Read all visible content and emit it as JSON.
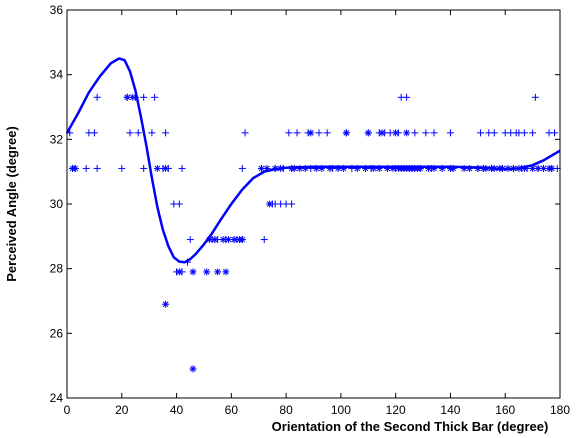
{
  "chart_data": {
    "type": "scatter",
    "title": "",
    "xlabel": "Orientation of the Second Thick Bar (degree)",
    "ylabel": "Perceived Angle (degree)",
    "xlim": [
      0,
      180
    ],
    "ylim": [
      24,
      36
    ],
    "xticks": [
      0,
      20,
      40,
      60,
      80,
      100,
      120,
      140,
      160,
      180
    ],
    "yticks": [
      24,
      26,
      28,
      30,
      32,
      34,
      36
    ],
    "grid": false,
    "legend": "none",
    "colors": {
      "series": "#0000ff",
      "axes": "#000000",
      "background": "#ffffff"
    },
    "series": [
      {
        "kind": "points",
        "marker": "plus",
        "points": [
          [
            1,
            32.2
          ],
          [
            2,
            31.1
          ],
          [
            3,
            31.1
          ],
          [
            7,
            31.1
          ],
          [
            8,
            32.2
          ],
          [
            10,
            32.2
          ],
          [
            11,
            31.1
          ],
          [
            11,
            33.3
          ],
          [
            20,
            31.1
          ],
          [
            22,
            33.3
          ],
          [
            23,
            32.2
          ],
          [
            25,
            33.3
          ],
          [
            26,
            32.2
          ],
          [
            28,
            33.3
          ],
          [
            28,
            31.1
          ],
          [
            31,
            32.2
          ],
          [
            32,
            33.3
          ],
          [
            35,
            31.1
          ],
          [
            36,
            32.2
          ],
          [
            37,
            31.1
          ],
          [
            39,
            30.0
          ],
          [
            40,
            27.9
          ],
          [
            41,
            30.0
          ],
          [
            42,
            31.1
          ],
          [
            42,
            27.9
          ],
          [
            44,
            28.2
          ],
          [
            45,
            28.9
          ],
          [
            53,
            28.9
          ],
          [
            54,
            28.9
          ],
          [
            55,
            28.9
          ],
          [
            58,
            28.9
          ],
          [
            61,
            28.9
          ],
          [
            62,
            28.9
          ],
          [
            64,
            28.9
          ],
          [
            64,
            31.1
          ],
          [
            65,
            32.2
          ],
          [
            71,
            31.1
          ],
          [
            72,
            28.9
          ],
          [
            75,
            30.0
          ],
          [
            76,
            30.0
          ],
          [
            76,
            31.1
          ],
          [
            78,
            30.0
          ],
          [
            79,
            31.1
          ],
          [
            80,
            30.0
          ],
          [
            81,
            32.2
          ],
          [
            82,
            30.0
          ],
          [
            84,
            32.2
          ],
          [
            88,
            32.2
          ],
          [
            89,
            31.1
          ],
          [
            92,
            32.2
          ],
          [
            95,
            32.2
          ],
          [
            97,
            31.1
          ],
          [
            102,
            32.2
          ],
          [
            104,
            31.1
          ],
          [
            110,
            32.2
          ],
          [
            111,
            31.1
          ],
          [
            114,
            32.2
          ],
          [
            116,
            32.2
          ],
          [
            118,
            32.2
          ],
          [
            120,
            31.1
          ],
          [
            121,
            32.2
          ],
          [
            122,
            33.3
          ],
          [
            124,
            33.3
          ],
          [
            126,
            31.1
          ],
          [
            127,
            32.2
          ],
          [
            129,
            31.1
          ],
          [
            131,
            32.2
          ],
          [
            133,
            31.1
          ],
          [
            134,
            32.2
          ],
          [
            140,
            32.2
          ],
          [
            150,
            31.1
          ],
          [
            151,
            32.2
          ],
          [
            152,
            31.1
          ],
          [
            154,
            32.2
          ],
          [
            155,
            31.1
          ],
          [
            156,
            32.2
          ],
          [
            159,
            31.1
          ],
          [
            160,
            32.2
          ],
          [
            162,
            32.2
          ],
          [
            163,
            31.1
          ],
          [
            164,
            32.2
          ],
          [
            165,
            32.2
          ],
          [
            166,
            31.1
          ],
          [
            167,
            32.2
          ],
          [
            168,
            31.1
          ],
          [
            170,
            32.2
          ],
          [
            171,
            33.3
          ],
          [
            172,
            31.1
          ],
          [
            176,
            32.2
          ],
          [
            177,
            31.1
          ],
          [
            178,
            32.2
          ],
          [
            179,
            31.1
          ]
        ]
      },
      {
        "kind": "points",
        "marker": "asterisk",
        "points": [
          [
            2,
            31.1
          ],
          [
            3,
            31.1
          ],
          [
            22,
            33.3
          ],
          [
            24,
            33.3
          ],
          [
            33,
            31.1
          ],
          [
            36,
            31.1
          ],
          [
            36,
            26.9
          ],
          [
            41,
            27.9
          ],
          [
            46,
            24.9
          ],
          [
            46,
            27.9
          ],
          [
            51,
            27.9
          ],
          [
            52,
            28.9
          ],
          [
            54,
            28.9
          ],
          [
            55,
            27.9
          ],
          [
            57,
            28.9
          ],
          [
            58,
            27.9
          ],
          [
            59,
            28.9
          ],
          [
            61,
            28.9
          ],
          [
            63,
            28.9
          ],
          [
            64,
            28.9
          ],
          [
            71,
            31.1
          ],
          [
            73,
            31.1
          ],
          [
            74,
            30.0
          ],
          [
            76,
            31.1
          ],
          [
            78,
            31.1
          ],
          [
            82,
            31.1
          ],
          [
            83,
            31.1
          ],
          [
            85,
            31.1
          ],
          [
            87,
            31.1
          ],
          [
            89,
            32.2
          ],
          [
            91,
            31.1
          ],
          [
            93,
            31.1
          ],
          [
            96,
            31.1
          ],
          [
            99,
            31.1
          ],
          [
            101,
            31.1
          ],
          [
            102,
            32.2
          ],
          [
            106,
            31.1
          ],
          [
            109,
            31.1
          ],
          [
            110,
            32.2
          ],
          [
            112,
            31.1
          ],
          [
            114,
            31.1
          ],
          [
            115,
            32.2
          ],
          [
            117,
            31.1
          ],
          [
            119,
            31.1
          ],
          [
            120,
            32.2
          ],
          [
            121,
            31.1
          ],
          [
            122,
            31.1
          ],
          [
            123,
            31.1
          ],
          [
            124,
            31.1
          ],
          [
            124,
            32.2
          ],
          [
            125,
            31.1
          ],
          [
            126,
            31.1
          ],
          [
            127,
            31.1
          ],
          [
            128,
            31.1
          ],
          [
            129,
            31.1
          ],
          [
            132,
            31.1
          ],
          [
            134,
            31.1
          ],
          [
            137,
            31.1
          ],
          [
            140,
            31.1
          ],
          [
            141,
            31.1
          ],
          [
            145,
            31.1
          ],
          [
            147,
            31.1
          ],
          [
            150,
            31.1
          ],
          [
            152,
            31.1
          ],
          [
            153,
            31.1
          ],
          [
            155,
            31.1
          ],
          [
            156,
            31.1
          ],
          [
            158,
            31.1
          ],
          [
            159,
            31.1
          ],
          [
            161,
            31.1
          ],
          [
            163,
            31.1
          ],
          [
            165,
            31.1
          ],
          [
            167,
            31.1
          ],
          [
            170,
            31.1
          ],
          [
            172,
            31.1
          ],
          [
            174,
            31.1
          ],
          [
            176,
            31.1
          ],
          [
            177,
            31.1
          ]
        ]
      },
      {
        "kind": "line",
        "points": [
          [
            0,
            32.2
          ],
          [
            4,
            32.8
          ],
          [
            8,
            33.45
          ],
          [
            12,
            33.95
          ],
          [
            16,
            34.35
          ],
          [
            19,
            34.5
          ],
          [
            21,
            34.45
          ],
          [
            23,
            34.1
          ],
          [
            25,
            33.5
          ],
          [
            27,
            32.7
          ],
          [
            29,
            31.8
          ],
          [
            31,
            30.8
          ],
          [
            33,
            29.9
          ],
          [
            35,
            29.2
          ],
          [
            37,
            28.7
          ],
          [
            39,
            28.35
          ],
          [
            41,
            28.22
          ],
          [
            43,
            28.2
          ],
          [
            45,
            28.3
          ],
          [
            47,
            28.45
          ],
          [
            50,
            28.75
          ],
          [
            53,
            29.1
          ],
          [
            56,
            29.5
          ],
          [
            60,
            30.0
          ],
          [
            64,
            30.45
          ],
          [
            68,
            30.8
          ],
          [
            72,
            31.0
          ],
          [
            76,
            31.08
          ],
          [
            80,
            31.12
          ],
          [
            90,
            31.15
          ],
          [
            100,
            31.15
          ],
          [
            120,
            31.15
          ],
          [
            140,
            31.15
          ],
          [
            150,
            31.13
          ],
          [
            155,
            31.1
          ],
          [
            160,
            31.08
          ],
          [
            165,
            31.1
          ],
          [
            170,
            31.2
          ],
          [
            174,
            31.35
          ],
          [
            177,
            31.5
          ],
          [
            180,
            31.65
          ]
        ]
      }
    ]
  }
}
